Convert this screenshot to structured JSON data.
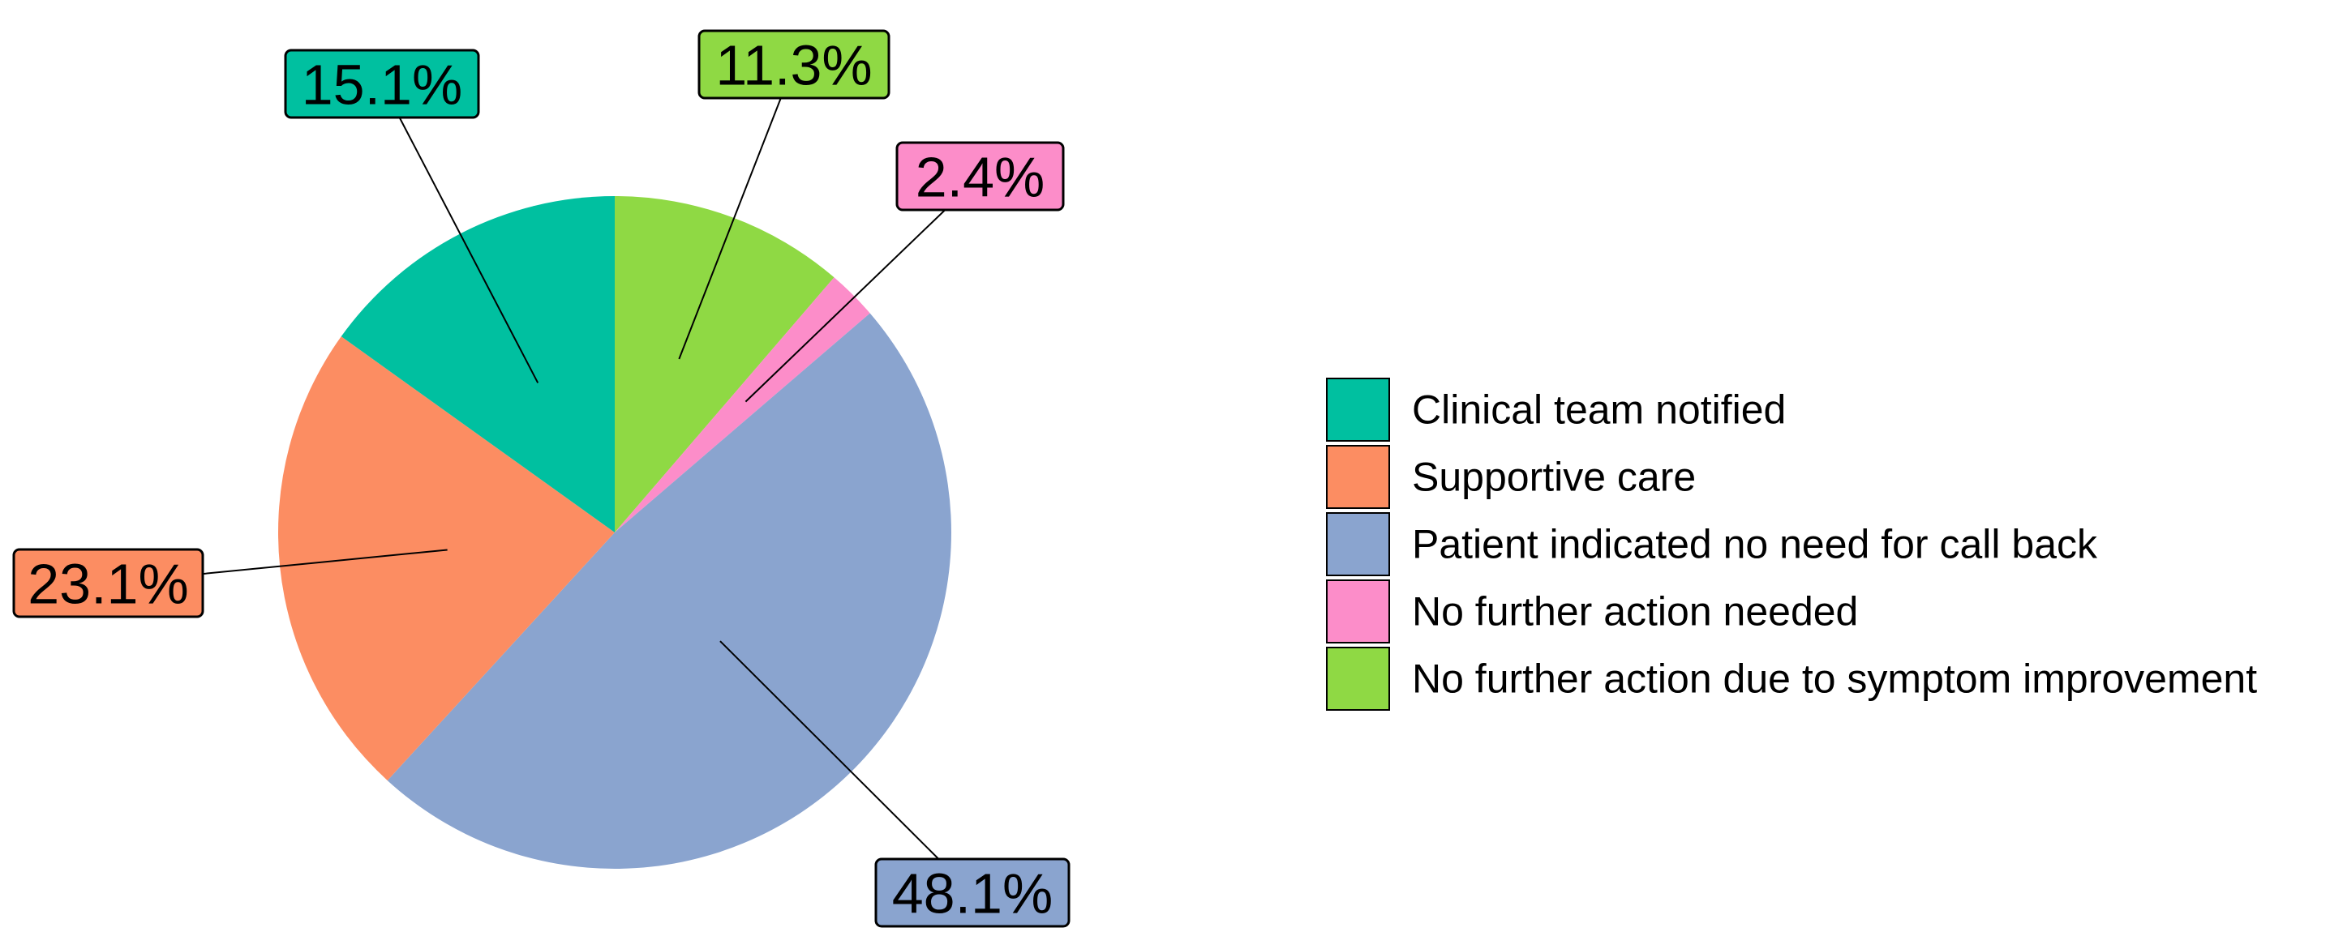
{
  "chart_data": {
    "type": "pie",
    "title": "",
    "start_angle_deg": 0,
    "direction": "clockwise",
    "slices": [
      {
        "label": "No further action due to symptom improvement",
        "value": 11.3,
        "display": "11.3%",
        "color": "#8fd944"
      },
      {
        "label": "No further action needed",
        "value": 2.4,
        "display": "2.4%",
        "color": "#fc8dc9"
      },
      {
        "label": "Patient indicated no need for call back",
        "value": 48.1,
        "display": "48.1%",
        "color": "#8aa4cf"
      },
      {
        "label": "Supportive care",
        "value": 23.1,
        "display": "23.1%",
        "color": "#fc8d62"
      },
      {
        "label": "Clinical team notified",
        "value": 15.1,
        "display": "15.1%",
        "color": "#00c0a0"
      }
    ],
    "legend": {
      "position": "right",
      "items": [
        {
          "label": "Clinical team notified",
          "color": "#00c0a0"
        },
        {
          "label": "Supportive care",
          "color": "#fc8d62"
        },
        {
          "label": "Patient indicated no need for call back",
          "color": "#8aa4cf"
        },
        {
          "label": "No further action needed",
          "color": "#fc8dc9"
        },
        {
          "label": "No further action due to symptom improvement",
          "color": "#8fd944"
        }
      ]
    }
  }
}
